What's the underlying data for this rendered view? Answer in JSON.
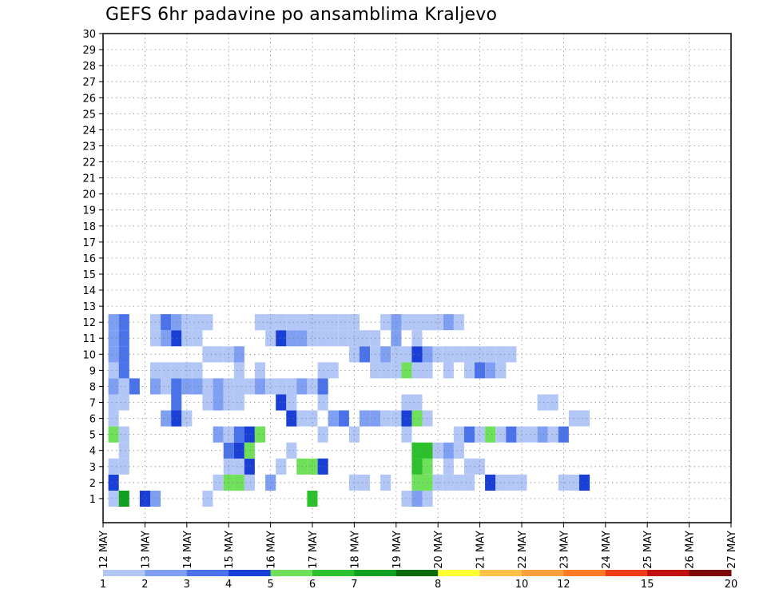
{
  "chart_data": {
    "type": "heatmap",
    "title": "GEFS 6hr padavine po ansamblima Kraljevo",
    "x_tick_labels": [
      "12 MAY",
      "13 MAY",
      "14 MAY",
      "15 MAY",
      "16 MAY",
      "17 MAY",
      "18 MAY",
      "19 MAY",
      "20 MAY",
      "21 MAY",
      "22 MAY",
      "23 MAY",
      "24 MAY",
      "25 MAY",
      "26 MAY",
      "27 MAY"
    ],
    "y_tick_labels": [
      "1",
      "2",
      "3",
      "4",
      "5",
      "6",
      "7",
      "8",
      "9",
      "10",
      "11",
      "12",
      "13",
      "14",
      "15",
      "16",
      "17",
      "18",
      "19",
      "20",
      "21",
      "22",
      "23",
      "24",
      "25",
      "26",
      "27",
      "28",
      "29",
      "30"
    ],
    "ylabel": "",
    "xlabel": "",
    "grid": true,
    "colorbar": {
      "labels": [
        "1",
        "2",
        "3",
        "4",
        "5",
        "6",
        "7",
        "8",
        "10",
        "12",
        "15",
        "20"
      ],
      "colors": [
        "#b3c7f7",
        "#7f9ff2",
        "#4a73ea",
        "#1a3fd6",
        "#6fe05a",
        "#2cc12c",
        "#0fa020",
        "#0a6b0a",
        "#ffff33",
        "#ffc04a",
        "#ffa040",
        "#ff7a26",
        "#ee3b18",
        "#c01010",
        "#7a0a0a"
      ]
    },
    "cell_values": {
      "1": [
        [
          1,
          1
        ],
        [
          2,
          7
        ],
        [
          4,
          4
        ],
        [
          5,
          2
        ],
        [
          10,
          1
        ],
        [
          20,
          6
        ],
        [
          29,
          1
        ],
        [
          30,
          2
        ],
        [
          31,
          1
        ]
      ],
      "2": [
        [
          1,
          4
        ],
        [
          11,
          1
        ],
        [
          12,
          5
        ],
        [
          13,
          5
        ],
        [
          14,
          1
        ],
        [
          16,
          2
        ],
        [
          24,
          1
        ],
        [
          25,
          1
        ],
        [
          27,
          1
        ],
        [
          30,
          5
        ],
        [
          31,
          5
        ],
        [
          32,
          1
        ],
        [
          33,
          1
        ],
        [
          34,
          1
        ],
        [
          35,
          1
        ],
        [
          37,
          4
        ],
        [
          38,
          1
        ],
        [
          39,
          1
        ],
        [
          40,
          1
        ],
        [
          44,
          1
        ],
        [
          45,
          1
        ],
        [
          46,
          4
        ]
      ],
      "3": [
        [
          1,
          1
        ],
        [
          2,
          1
        ],
        [
          12,
          1
        ],
        [
          13,
          1
        ],
        [
          14,
          4
        ],
        [
          17,
          1
        ],
        [
          19,
          5
        ],
        [
          20,
          5
        ],
        [
          21,
          4
        ],
        [
          30,
          6
        ],
        [
          31,
          5
        ],
        [
          33,
          1
        ],
        [
          35,
          1
        ],
        [
          36,
          1
        ]
      ],
      "4": [
        [
          2,
          1
        ],
        [
          12,
          3
        ],
        [
          13,
          4
        ],
        [
          14,
          5
        ],
        [
          18,
          1
        ],
        [
          30,
          6
        ],
        [
          31,
          6
        ],
        [
          32,
          1
        ],
        [
          33,
          2
        ],
        [
          34,
          1
        ]
      ],
      "5": [
        [
          1,
          5
        ],
        [
          2,
          1
        ],
        [
          11,
          2
        ],
        [
          12,
          1
        ],
        [
          13,
          3
        ],
        [
          14,
          4
        ],
        [
          15,
          5
        ],
        [
          21,
          1
        ],
        [
          24,
          1
        ],
        [
          29,
          1
        ],
        [
          34,
          1
        ],
        [
          35,
          3
        ],
        [
          36,
          1
        ],
        [
          37,
          5
        ],
        [
          38,
          1
        ],
        [
          39,
          3
        ],
        [
          40,
          1
        ],
        [
          41,
          1
        ],
        [
          42,
          2
        ],
        [
          43,
          1
        ],
        [
          44,
          3
        ]
      ],
      "6": [
        [
          1,
          1
        ],
        [
          6,
          2
        ],
        [
          7,
          4
        ],
        [
          8,
          1
        ],
        [
          18,
          4
        ],
        [
          19,
          1
        ],
        [
          20,
          1
        ],
        [
          22,
          2
        ],
        [
          23,
          3
        ],
        [
          25,
          2
        ],
        [
          26,
          2
        ],
        [
          27,
          1
        ],
        [
          28,
          1
        ],
        [
          29,
          4
        ],
        [
          30,
          5
        ],
        [
          31,
          1
        ],
        [
          45,
          1
        ],
        [
          46,
          1
        ]
      ],
      "7": [
        [
          1,
          1
        ],
        [
          2,
          1
        ],
        [
          7,
          3
        ],
        [
          10,
          1
        ],
        [
          11,
          2
        ],
        [
          12,
          1
        ],
        [
          13,
          1
        ],
        [
          17,
          4
        ],
        [
          18,
          1
        ],
        [
          21,
          1
        ],
        [
          29,
          1
        ],
        [
          30,
          1
        ],
        [
          42,
          1
        ],
        [
          43,
          1
        ]
      ],
      "8": [
        [
          1,
          2
        ],
        [
          2,
          1
        ],
        [
          3,
          3
        ],
        [
          5,
          2
        ],
        [
          6,
          1
        ],
        [
          7,
          3
        ],
        [
          8,
          2
        ],
        [
          9,
          2
        ],
        [
          10,
          1
        ],
        [
          11,
          2
        ],
        [
          12,
          1
        ],
        [
          13,
          1
        ],
        [
          14,
          1
        ],
        [
          15,
          2
        ],
        [
          16,
          1
        ],
        [
          17,
          1
        ],
        [
          18,
          1
        ],
        [
          19,
          2
        ],
        [
          20,
          1
        ],
        [
          21,
          3
        ]
      ],
      "9": [
        [
          1,
          1
        ],
        [
          2,
          3
        ],
        [
          5,
          1
        ],
        [
          6,
          1
        ],
        [
          7,
          1
        ],
        [
          8,
          1
        ],
        [
          9,
          1
        ],
        [
          13,
          1
        ],
        [
          15,
          1
        ],
        [
          21,
          1
        ],
        [
          22,
          1
        ],
        [
          26,
          1
        ],
        [
          27,
          1
        ],
        [
          28,
          1
        ],
        [
          29,
          5
        ],
        [
          30,
          1
        ],
        [
          31,
          1
        ],
        [
          33,
          1
        ],
        [
          35,
          1
        ],
        [
          36,
          3
        ],
        [
          37,
          2
        ],
        [
          38,
          1
        ]
      ],
      "10": [
        [
          1,
          2
        ],
        [
          2,
          3
        ],
        [
          10,
          1
        ],
        [
          11,
          1
        ],
        [
          12,
          1
        ],
        [
          13,
          2
        ],
        [
          24,
          1
        ],
        [
          25,
          3
        ],
        [
          26,
          1
        ],
        [
          27,
          2
        ],
        [
          28,
          1
        ],
        [
          29,
          1
        ],
        [
          30,
          4
        ],
        [
          31,
          2
        ],
        [
          32,
          1
        ],
        [
          33,
          1
        ],
        [
          34,
          1
        ],
        [
          35,
          1
        ],
        [
          36,
          1
        ],
        [
          37,
          1
        ],
        [
          38,
          1
        ],
        [
          39,
          1
        ]
      ],
      "11": [
        [
          1,
          2
        ],
        [
          2,
          3
        ],
        [
          5,
          1
        ],
        [
          6,
          2
        ],
        [
          7,
          4
        ],
        [
          8,
          1
        ],
        [
          9,
          1
        ],
        [
          16,
          1
        ],
        [
          17,
          4
        ],
        [
          18,
          2
        ],
        [
          19,
          2
        ],
        [
          20,
          1
        ],
        [
          21,
          1
        ],
        [
          22,
          1
        ],
        [
          23,
          1
        ],
        [
          24,
          1
        ],
        [
          25,
          1
        ],
        [
          26,
          1
        ],
        [
          28,
          2
        ],
        [
          30,
          1
        ]
      ],
      "12": [
        [
          1,
          2
        ],
        [
          2,
          3
        ],
        [
          5,
          1
        ],
        [
          6,
          3
        ],
        [
          7,
          2
        ],
        [
          8,
          1
        ],
        [
          9,
          1
        ],
        [
          10,
          1
        ],
        [
          15,
          1
        ],
        [
          16,
          1
        ],
        [
          17,
          1
        ],
        [
          18,
          1
        ],
        [
          19,
          1
        ],
        [
          20,
          1
        ],
        [
          21,
          1
        ],
        [
          22,
          1
        ],
        [
          23,
          1
        ],
        [
          24,
          1
        ],
        [
          27,
          1
        ],
        [
          28,
          2
        ],
        [
          29,
          1
        ],
        [
          30,
          1
        ],
        [
          31,
          1
        ],
        [
          32,
          1
        ],
        [
          33,
          2
        ],
        [
          34,
          1
        ]
      ]
    },
    "note_grid": "ensemble member (y) by 6-hourly step from 12 MAY (x)"
  }
}
